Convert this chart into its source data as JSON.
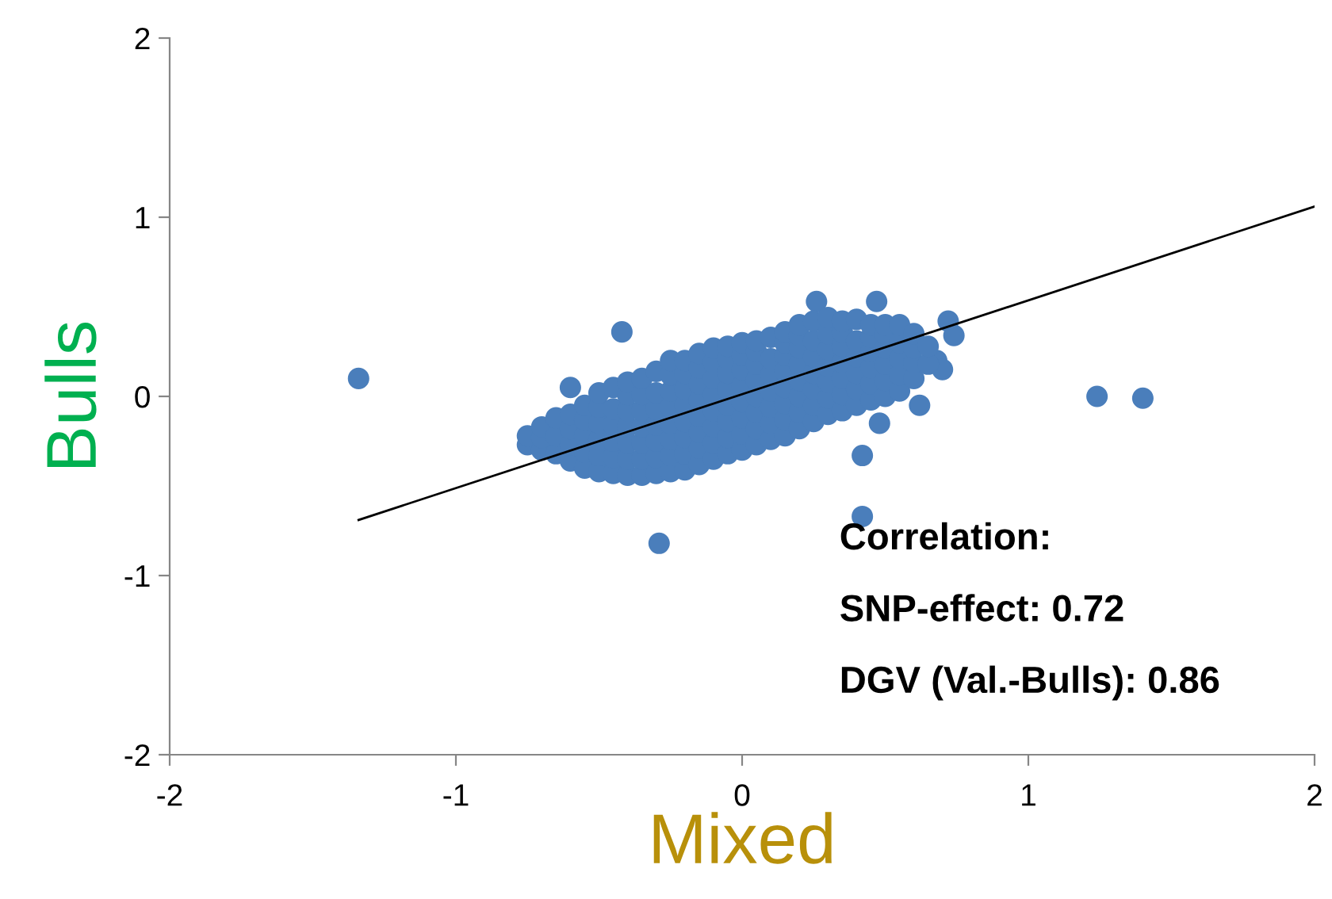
{
  "chart_data": {
    "type": "scatter",
    "xlabel": "Mixed",
    "ylabel": "Bulls",
    "xlim": [
      -2,
      2
    ],
    "xticks": [
      -2,
      -1,
      0,
      1,
      2
    ],
    "ylim": [
      -2,
      2
    ],
    "yticks": [
      -2,
      -1,
      0,
      1,
      2
    ],
    "grid": false,
    "legend": false,
    "annotations": [
      "Correlation:",
      "SNP-effect: 0.72",
      "DGV (Val.-Bulls): 0.86"
    ],
    "series": [
      {
        "marker": "circle",
        "color": "#4a7ebb",
        "x": [
          -1.34,
          -0.42,
          -0.29,
          0.26,
          0.47,
          0.42,
          0.42,
          1.24,
          1.4,
          0.72,
          0.74,
          0.68,
          0.7,
          0.62,
          0.48,
          -0.75,
          -0.75,
          -0.7,
          -0.7,
          -0.7,
          -0.65,
          -0.65,
          -0.65,
          -0.6,
          -0.6,
          -0.6,
          -0.6,
          -0.6,
          -0.55,
          -0.55,
          -0.55,
          -0.55,
          -0.55,
          -0.5,
          -0.5,
          -0.5,
          -0.5,
          -0.5,
          -0.5,
          -0.45,
          -0.45,
          -0.45,
          -0.45,
          -0.45,
          -0.45,
          -0.4,
          -0.4,
          -0.4,
          -0.4,
          -0.4,
          -0.4,
          -0.4,
          -0.35,
          -0.35,
          -0.35,
          -0.35,
          -0.35,
          -0.35,
          -0.35,
          -0.3,
          -0.3,
          -0.3,
          -0.3,
          -0.3,
          -0.3,
          -0.3,
          -0.25,
          -0.25,
          -0.25,
          -0.25,
          -0.25,
          -0.25,
          -0.25,
          -0.25,
          -0.2,
          -0.2,
          -0.2,
          -0.2,
          -0.2,
          -0.2,
          -0.2,
          -0.2,
          -0.15,
          -0.15,
          -0.15,
          -0.15,
          -0.15,
          -0.15,
          -0.15,
          -0.15,
          -0.1,
          -0.1,
          -0.1,
          -0.1,
          -0.1,
          -0.1,
          -0.1,
          -0.1,
          -0.05,
          -0.05,
          -0.05,
          -0.05,
          -0.05,
          -0.05,
          -0.05,
          -0.05,
          0.0,
          0.0,
          0.0,
          0.0,
          0.0,
          0.0,
          0.0,
          0.0,
          0.05,
          0.05,
          0.05,
          0.05,
          0.05,
          0.05,
          0.05,
          0.05,
          0.1,
          0.1,
          0.1,
          0.1,
          0.1,
          0.1,
          0.1,
          0.15,
          0.15,
          0.15,
          0.15,
          0.15,
          0.15,
          0.15,
          0.15,
          0.2,
          0.2,
          0.2,
          0.2,
          0.2,
          0.2,
          0.2,
          0.2,
          0.25,
          0.25,
          0.25,
          0.25,
          0.25,
          0.25,
          0.25,
          0.3,
          0.3,
          0.3,
          0.3,
          0.3,
          0.3,
          0.3,
          0.35,
          0.35,
          0.35,
          0.35,
          0.35,
          0.35,
          0.35,
          0.4,
          0.4,
          0.4,
          0.4,
          0.4,
          0.4,
          0.45,
          0.45,
          0.45,
          0.45,
          0.45,
          0.45,
          0.5,
          0.5,
          0.5,
          0.5,
          0.5,
          0.5,
          0.55,
          0.55,
          0.55,
          0.55,
          0.55,
          0.6,
          0.6,
          0.6,
          0.6,
          0.65,
          0.65
        ],
        "values": [
          0.1,
          0.36,
          -0.82,
          0.53,
          0.53,
          -0.33,
          -0.67,
          0.0,
          -0.01,
          0.42,
          0.34,
          0.2,
          0.15,
          -0.05,
          -0.15,
          -0.27,
          -0.22,
          -0.3,
          -0.23,
          -0.17,
          -0.32,
          -0.22,
          -0.12,
          -0.36,
          -0.27,
          -0.18,
          -0.1,
          0.05,
          -0.4,
          -0.31,
          -0.22,
          -0.13,
          -0.05,
          -0.42,
          -0.33,
          -0.24,
          -0.15,
          -0.06,
          0.02,
          -0.43,
          -0.34,
          -0.25,
          -0.16,
          -0.07,
          0.05,
          -0.44,
          -0.35,
          -0.26,
          -0.17,
          -0.08,
          0.01,
          0.08,
          -0.44,
          -0.35,
          -0.26,
          -0.17,
          -0.08,
          0.01,
          0.1,
          -0.43,
          -0.34,
          -0.25,
          -0.16,
          -0.07,
          0.02,
          0.14,
          -0.42,
          -0.33,
          -0.24,
          -0.15,
          -0.06,
          0.03,
          0.12,
          0.2,
          -0.41,
          -0.32,
          -0.23,
          -0.14,
          -0.05,
          0.04,
          0.13,
          0.2,
          -0.38,
          -0.29,
          -0.2,
          -0.11,
          -0.02,
          0.07,
          0.16,
          0.24,
          -0.35,
          -0.26,
          -0.17,
          -0.08,
          0.01,
          0.1,
          0.19,
          0.27,
          -0.32,
          -0.23,
          -0.14,
          -0.05,
          0.04,
          0.13,
          0.21,
          0.28,
          -0.3,
          -0.21,
          -0.12,
          -0.03,
          0.06,
          0.15,
          0.23,
          0.3,
          -0.27,
          -0.18,
          -0.09,
          0.0,
          0.09,
          0.18,
          0.25,
          0.31,
          -0.24,
          -0.15,
          -0.06,
          0.03,
          0.12,
          0.21,
          0.33,
          -0.22,
          -0.13,
          -0.04,
          0.05,
          0.14,
          0.23,
          0.3,
          0.36,
          -0.18,
          -0.09,
          0.0,
          0.09,
          0.18,
          0.27,
          0.34,
          0.4,
          -0.14,
          -0.05,
          0.04,
          0.13,
          0.22,
          0.31,
          0.42,
          -0.1,
          -0.01,
          0.08,
          0.17,
          0.26,
          0.35,
          0.44,
          -0.08,
          0.01,
          0.1,
          0.19,
          0.28,
          0.36,
          0.42,
          -0.05,
          0.04,
          0.13,
          0.22,
          0.31,
          0.43,
          -0.02,
          0.07,
          0.16,
          0.25,
          0.33,
          0.4,
          0.0,
          0.09,
          0.18,
          0.27,
          0.35,
          0.4,
          0.03,
          0.12,
          0.21,
          0.3,
          0.4,
          0.1,
          0.19,
          0.27,
          0.35,
          0.18,
          0.28
        ]
      },
      {
        "type": "line",
        "color": "#000000",
        "x": [
          -1.34,
          2
        ],
        "values": [
          -0.69,
          1.06
        ]
      }
    ]
  }
}
